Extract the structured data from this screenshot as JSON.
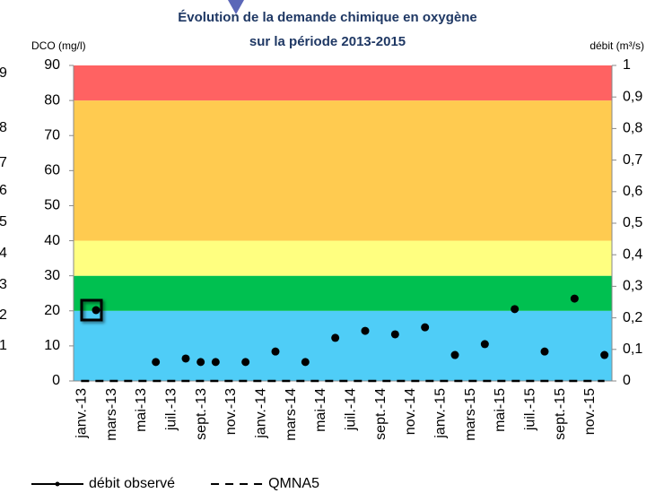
{
  "cropped_labels": [
    "9",
    "8",
    "7",
    "6",
    "5",
    "4",
    "3",
    "2",
    "1"
  ],
  "chart_data": {
    "type": "scatter",
    "title": [
      "Évolution de la demande chimique en oxygène",
      "sur la période 2013-2015"
    ],
    "ylabel": "DCO (mg/l)",
    "y2label": "débit (m³/s)",
    "categories": [
      "janv.-13",
      null,
      "mars-13",
      null,
      "mai-13",
      null,
      "juil.-13",
      null,
      "sept.-13",
      null,
      "nov.-13",
      null,
      "janv.-14",
      null,
      "mars-14",
      null,
      "mai-14",
      null,
      "juil.-14",
      null,
      "sept.-14",
      null,
      "nov.-14",
      null,
      "janv.-15",
      null,
      "mars-15",
      null,
      "mai-15",
      null,
      "juil.-15",
      null,
      "sept.-15",
      null,
      "nov.-15",
      null
    ],
    "ylim": [
      0,
      90
    ],
    "yticks": [
      0,
      10,
      20,
      30,
      40,
      50,
      60,
      70,
      80,
      90
    ],
    "y2lim": [
      0,
      1
    ],
    "y2ticks": [
      0,
      {
        "value": 0.1,
        "label": "0,1"
      },
      {
        "value": 0.2,
        "label": "0,2"
      },
      {
        "value": 0.3,
        "label": "0,3"
      },
      {
        "value": 0.4,
        "label": "0,4"
      },
      {
        "value": 0.5,
        "label": "0,5"
      },
      {
        "value": 0.6,
        "label": "0,6"
      },
      {
        "value": 0.7,
        "label": "0,7"
      },
      {
        "value": 0.8,
        "label": "0,8"
      },
      {
        "value": 0.9,
        "label": "0,9"
      },
      1
    ],
    "bands": [
      {
        "from": 0,
        "to": 20,
        "color": "#4fcdf7"
      },
      {
        "from": 20,
        "to": 30,
        "color": "#00c050"
      },
      {
        "from": 30,
        "to": 40,
        "color": "#ffff80"
      },
      {
        "from": 40,
        "to": 80,
        "color": "#ffcb50"
      },
      {
        "from": 80,
        "to": 90,
        "color": "#ff6262"
      }
    ],
    "series": [
      {
        "color": "#000000",
        "values": [
          null,
          20.2,
          null,
          null,
          null,
          5.4,
          null,
          6.4,
          5.4,
          5.4,
          null,
          5.4,
          null,
          8.4,
          null,
          5.4,
          null,
          12.3,
          null,
          14.3,
          null,
          13.3,
          null,
          15.3,
          null,
          7.4,
          null,
          10.5,
          null,
          20.5,
          null,
          8.4,
          null,
          23.5,
          null,
          7.4
        ]
      },
      {
        "name": "débit observé",
        "axis": "y2",
        "color": "#000000",
        "style": "solid",
        "values": [
          null,
          null,
          null,
          null,
          null,
          null,
          null,
          null,
          null,
          null,
          null,
          null,
          null,
          null,
          null,
          null,
          null,
          null,
          null,
          null,
          null,
          null,
          null,
          null,
          null,
          null,
          null,
          null,
          null,
          null,
          null,
          null,
          null,
          null,
          null,
          null
        ]
      },
      {
        "name": "QMNA5",
        "axis": "y2",
        "color": "#000000",
        "style": "dashed",
        "values": [
          0,
          0,
          0,
          0,
          0,
          0,
          0,
          0,
          0,
          0,
          0,
          0,
          0,
          0,
          0,
          0,
          0,
          0,
          0,
          0,
          0,
          0,
          0,
          0,
          0,
          0,
          0,
          0,
          0,
          0,
          0,
          0,
          0,
          0,
          0,
          0
        ]
      }
    ]
  }
}
